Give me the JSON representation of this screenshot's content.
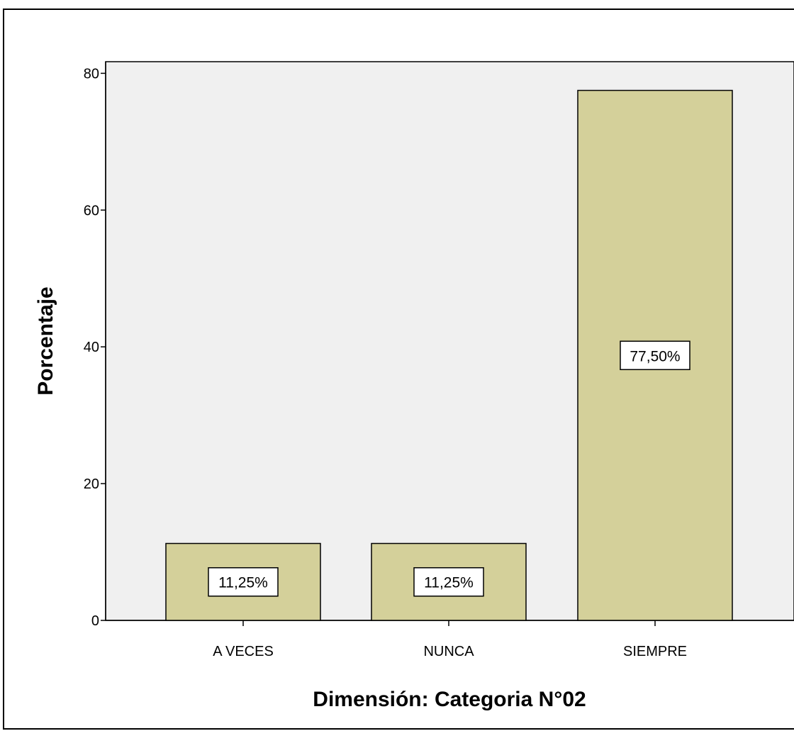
{
  "chart_data": {
    "type": "bar",
    "categories": [
      "A VECES",
      "NUNCA",
      "SIEMPRE"
    ],
    "values": [
      11.25,
      11.25,
      77.5
    ],
    "data_labels": [
      "11,25%",
      "11,25%",
      "77,50%"
    ],
    "title": "",
    "xlabel": "Dimensión: Categoria N°02",
    "ylabel": "Porcentaje",
    "ylim": [
      0,
      85
    ],
    "yticks": [
      0,
      20,
      40,
      60,
      80
    ],
    "ytick_labels": [
      "0",
      "20",
      "40",
      "60",
      "80"
    ],
    "grid": false,
    "colors": {
      "bar_fill": "#d4d09a",
      "bar_stroke": "#000000",
      "plot_background": "#f0f0f0",
      "label_background": "#ffffff"
    }
  }
}
